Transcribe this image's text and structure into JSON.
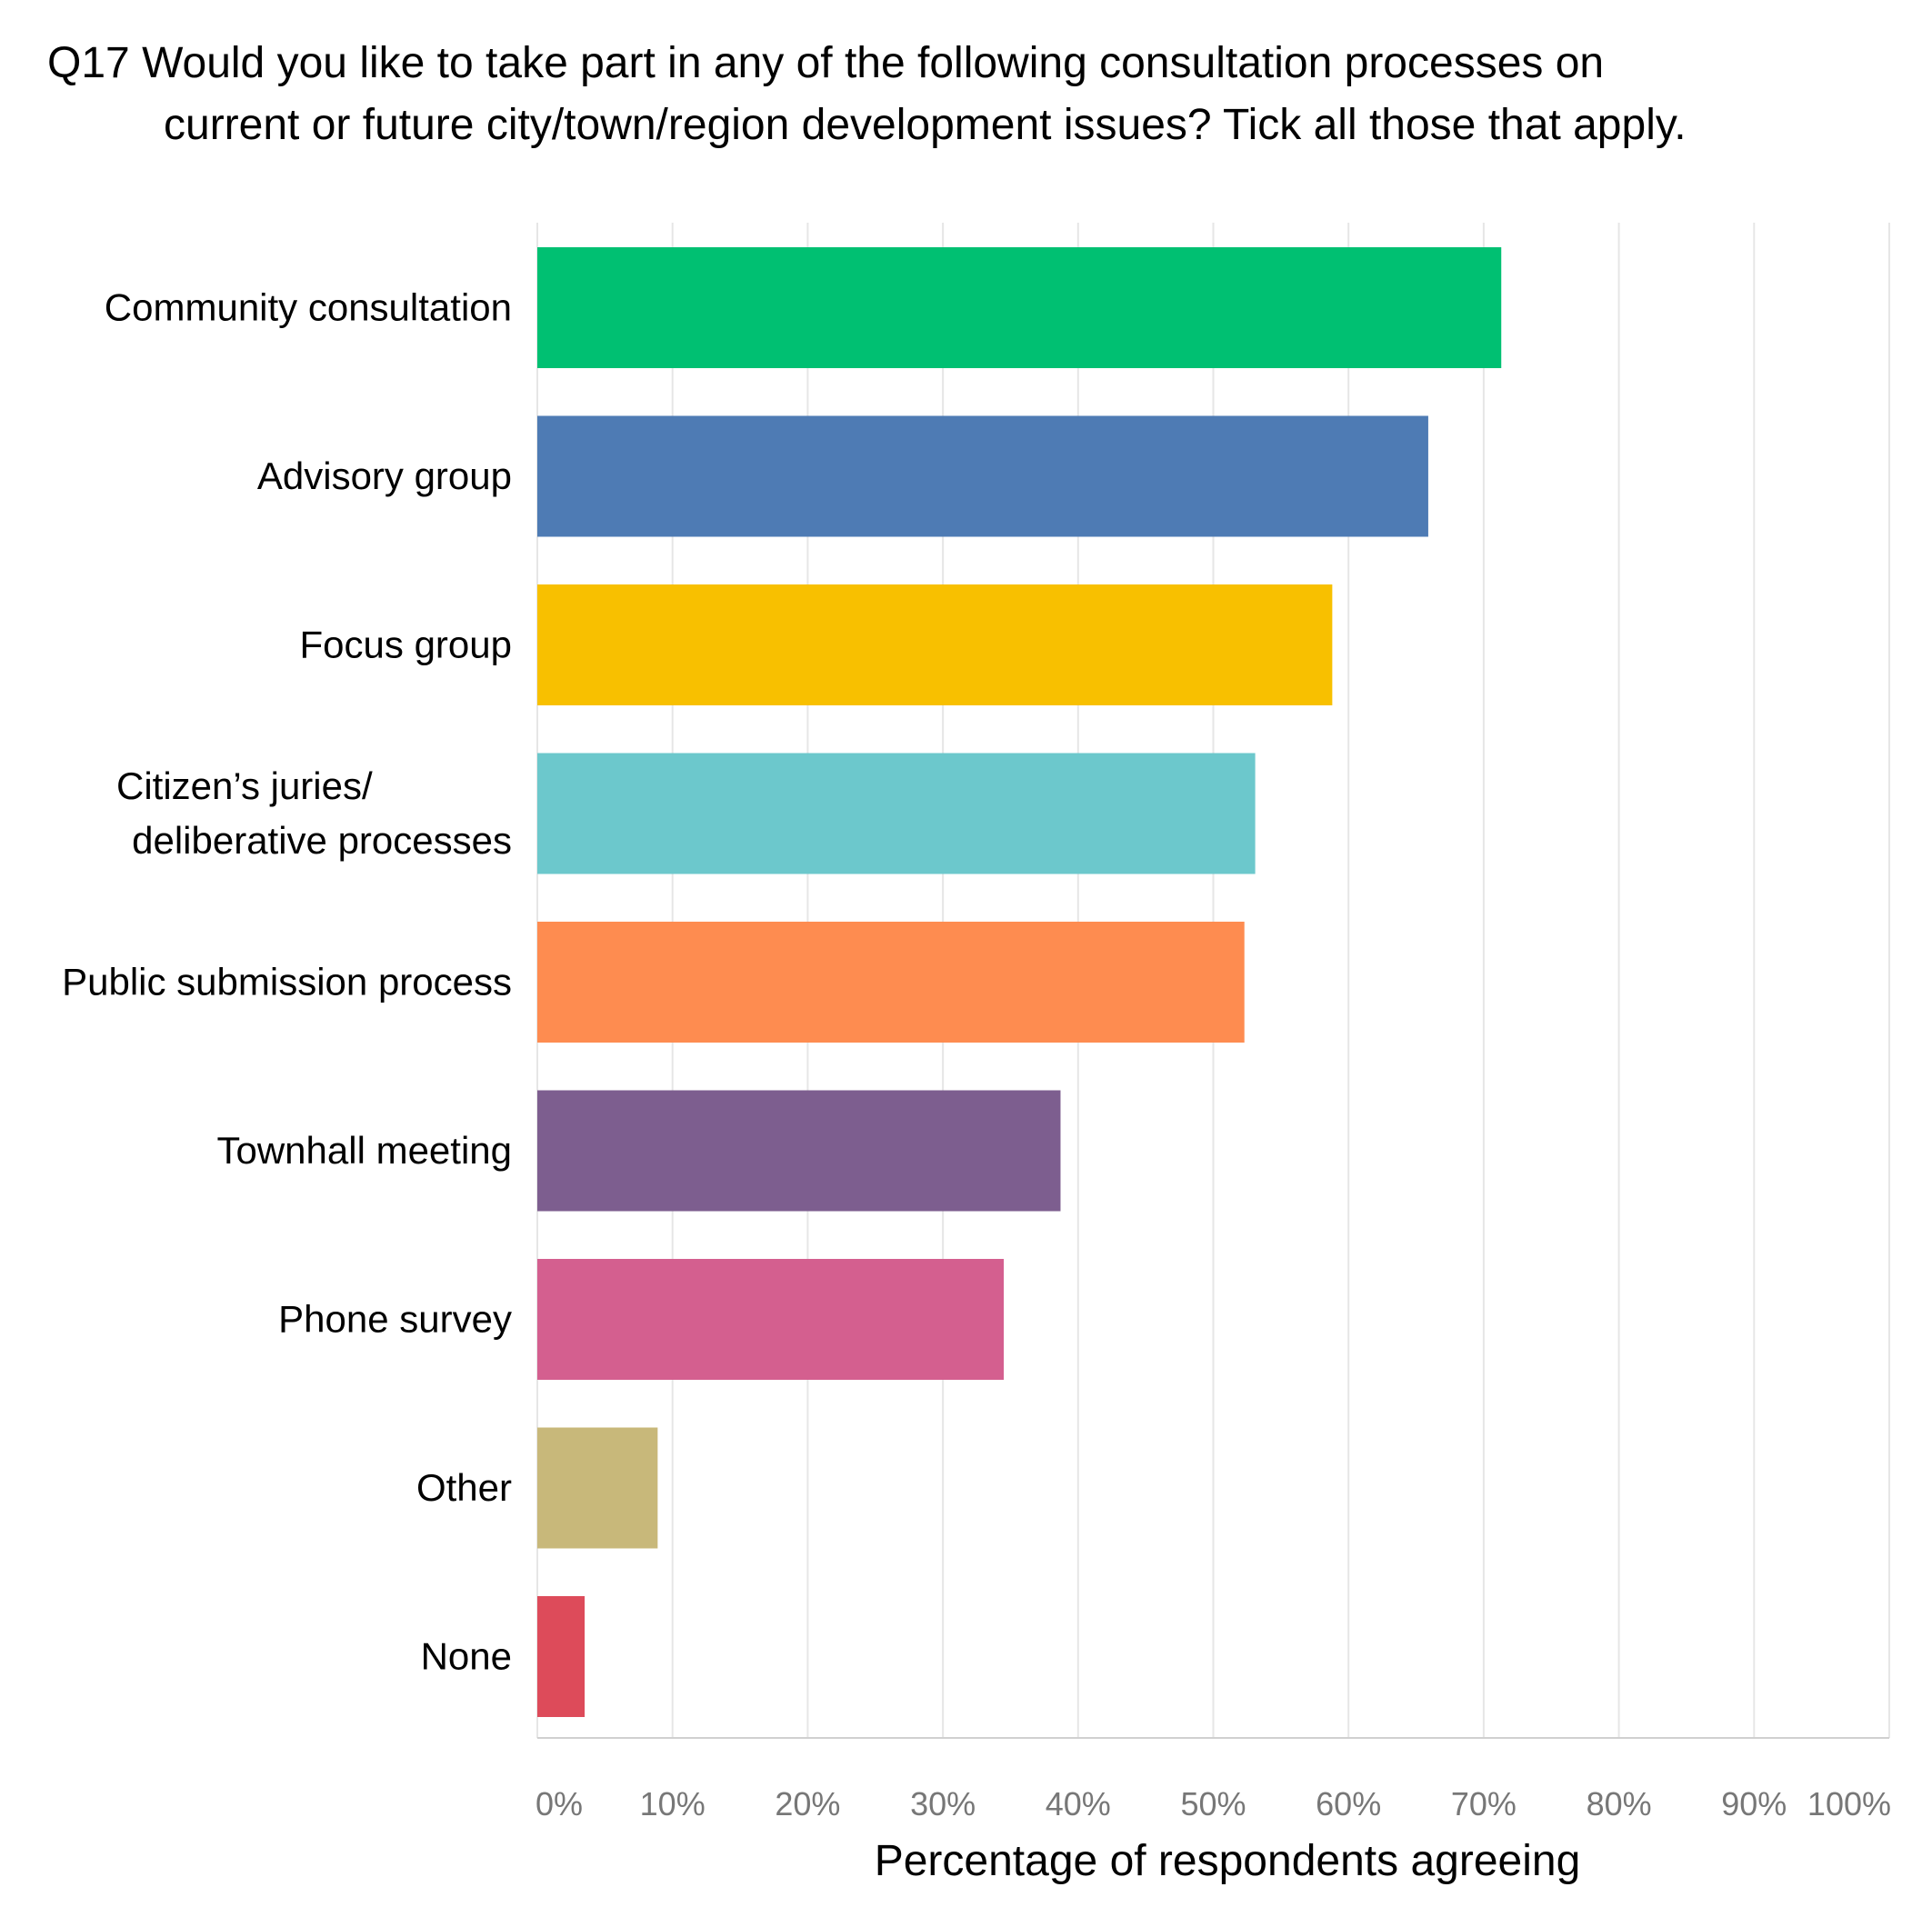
{
  "chart_data": {
    "type": "bar",
    "orientation": "horizontal",
    "title_lines": [
      "Q17 Would you like to take part in any of the following consultation processes on",
      "current or future city/town/region development issues? Tick all those that apply."
    ],
    "categories": [
      [
        "Community consultation"
      ],
      [
        "Advisory group"
      ],
      [
        "Focus group"
      ],
      [
        "Citizen’s juries/",
        "deliberative processes"
      ],
      [
        "Public submission process"
      ],
      [
        "Townhall meeting"
      ],
      [
        "Phone survey"
      ],
      [
        "Other"
      ],
      [
        "None"
      ]
    ],
    "values": [
      71.3,
      65.9,
      58.8,
      53.1,
      52.3,
      38.7,
      34.5,
      8.9,
      3.5
    ],
    "colors": [
      "#00c072",
      "#4e7bb4",
      "#f8c000",
      "#6cc8cc",
      "#fe8c50",
      "#7d5e8f",
      "#d45f8f",
      "#c8b87a",
      "#dd4b5a"
    ],
    "x_ticks": [
      "0%",
      "10%",
      "20%",
      "30%",
      "40%",
      "50%",
      "60%",
      "70%",
      "80%",
      "90%",
      "100%"
    ],
    "xlim": [
      0,
      100
    ],
    "xlabel": "Percentage of respondents agreeing",
    "ylabel": "",
    "grid": true
  }
}
